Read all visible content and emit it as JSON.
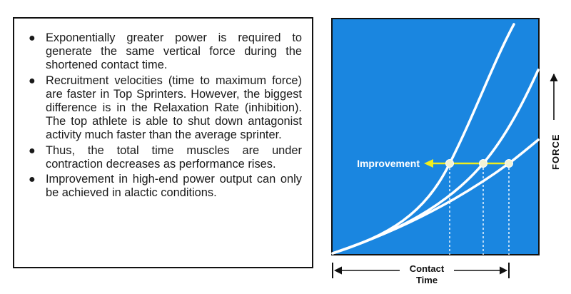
{
  "bullets": [
    {
      "text": "Exponentially greater power is required to generate the same vertical force during the shortened contact time."
    },
    {
      "text": "Recruitment velocities (time to maximum force) are faster in Top Sprinters.  However, the biggest difference is in the Relaxation Rate (inhibition).  The top athlete is able to shut down antagonist activity much faster than the average sprinter."
    },
    {
      "text": "Thus, the total time muscles are under contraction decreases as performance rises."
    },
    {
      "text": "Improvement in high-end power output can only be achieved in alactic conditions."
    }
  ],
  "diagram": {
    "improvement_label": "Improvement",
    "force_label": "FORCE",
    "contact_time_label_line1": "Contact",
    "contact_time_label_line2": "Time",
    "colors": {
      "panel_blue": "#1a86e0",
      "curve_white": "#ffffff",
      "arrow_yellow": "#f2ee1c",
      "axis_black": "#111111"
    }
  }
}
